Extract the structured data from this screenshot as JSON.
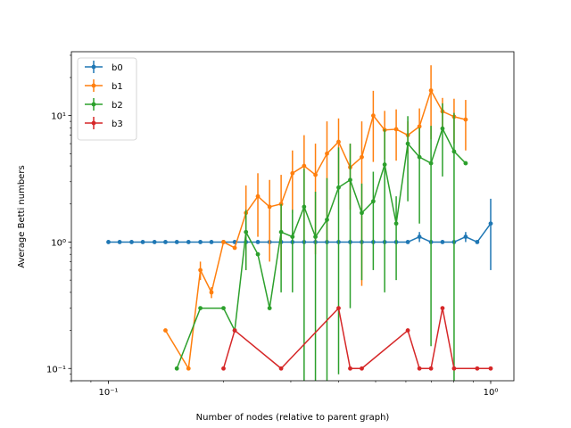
{
  "chart_data": {
    "type": "line",
    "title": "",
    "xlabel": "Number of nodes (relative to parent graph)",
    "ylabel": "Average Betti numbers",
    "xscale": "log",
    "yscale": "log",
    "xlim": [
      0.08,
      1.15
    ],
    "ylim": [
      0.08,
      32
    ],
    "x_major_ticks": [
      0.1,
      1
    ],
    "x_tick_labels": [
      "10⁻¹",
      "10⁰"
    ],
    "y_major_ticks": [
      0.1,
      1,
      10
    ],
    "y_tick_labels": [
      "10⁻¹",
      "10⁰",
      "10¹"
    ],
    "grid": false,
    "legend_position": "upper-left",
    "series": [
      {
        "name": "b0",
        "color": "#1f77b4",
        "points": [
          {
            "x": 0.1,
            "y": 1.0
          },
          {
            "x": 0.107,
            "y": 1.0
          },
          {
            "x": 0.115,
            "y": 1.0
          },
          {
            "x": 0.123,
            "y": 1.0
          },
          {
            "x": 0.132,
            "y": 1.0
          },
          {
            "x": 0.141,
            "y": 1.0
          },
          {
            "x": 0.151,
            "y": 1.0
          },
          {
            "x": 0.162,
            "y": 1.0
          },
          {
            "x": 0.174,
            "y": 1.0
          },
          {
            "x": 0.186,
            "y": 1.0
          },
          {
            "x": 0.2,
            "y": 1.0
          },
          {
            "x": 0.214,
            "y": 1.0
          },
          {
            "x": 0.229,
            "y": 1.0
          },
          {
            "x": 0.246,
            "y": 1.0
          },
          {
            "x": 0.264,
            "y": 1.0
          },
          {
            "x": 0.283,
            "y": 1.0
          },
          {
            "x": 0.303,
            "y": 1.0
          },
          {
            "x": 0.325,
            "y": 1.0
          },
          {
            "x": 0.348,
            "y": 1.0
          },
          {
            "x": 0.373,
            "y": 1.0
          },
          {
            "x": 0.4,
            "y": 1.0
          },
          {
            "x": 0.429,
            "y": 1.0
          },
          {
            "x": 0.46,
            "y": 1.0
          },
          {
            "x": 0.493,
            "y": 1.0
          },
          {
            "x": 0.528,
            "y": 1.0
          },
          {
            "x": 0.566,
            "y": 1.0
          },
          {
            "x": 0.607,
            "y": 1.0
          },
          {
            "x": 0.651,
            "y": 1.1,
            "err_lo": 1.0,
            "err_hi": 1.2
          },
          {
            "x": 0.698,
            "y": 1.0
          },
          {
            "x": 0.748,
            "y": 1.0
          },
          {
            "x": 0.802,
            "y": 1.0
          },
          {
            "x": 0.86,
            "y": 1.1,
            "err_lo": 1.0,
            "err_hi": 1.2
          },
          {
            "x": 0.922,
            "y": 1.0
          },
          {
            "x": 1.0,
            "y": 1.4,
            "err_lo": 0.6,
            "err_hi": 2.2
          }
        ]
      },
      {
        "name": "b1",
        "color": "#ff7f0e",
        "points": [
          {
            "x": 0.141,
            "y": 0.2
          },
          {
            "x": 0.162,
            "y": 0.1
          },
          {
            "x": 0.174,
            "y": 0.6,
            "err_lo": 0.5,
            "err_hi": 0.7
          },
          {
            "x": 0.186,
            "y": 0.4,
            "err_lo": 0.36,
            "err_hi": 0.44
          },
          {
            "x": 0.2,
            "y": 1.0
          },
          {
            "x": 0.214,
            "y": 0.9
          },
          {
            "x": 0.229,
            "y": 1.7,
            "err_lo": 0.6,
            "err_hi": 2.8
          },
          {
            "x": 0.246,
            "y": 2.3,
            "err_lo": 1.1,
            "err_hi": 3.5
          },
          {
            "x": 0.264,
            "y": 1.9,
            "err_lo": 0.7,
            "err_hi": 3.1
          },
          {
            "x": 0.283,
            "y": 2.0,
            "err_lo": 0.6,
            "err_hi": 3.4
          },
          {
            "x": 0.303,
            "y": 3.5,
            "err_lo": 1.7,
            "err_hi": 5.3
          },
          {
            "x": 0.325,
            "y": 4.0,
            "err_lo": 1.0,
            "err_hi": 7.0
          },
          {
            "x": 0.348,
            "y": 3.4,
            "err_lo": 0.8,
            "err_hi": 6.0
          },
          {
            "x": 0.373,
            "y": 5.0,
            "err_lo": 1.0,
            "err_hi": 9.0
          },
          {
            "x": 0.4,
            "y": 6.2,
            "err_lo": 2.9,
            "err_hi": 9.5
          },
          {
            "x": 0.429,
            "y": 3.9,
            "err_lo": 1.8,
            "err_hi": 6.0
          },
          {
            "x": 0.46,
            "y": 4.7,
            "err_lo": 0.45,
            "err_hi": 9.0
          },
          {
            "x": 0.493,
            "y": 10.0,
            "err_lo": 4.3,
            "err_hi": 15.7
          },
          {
            "x": 0.528,
            "y": 7.7,
            "err_lo": 4.5,
            "err_hi": 10.9
          },
          {
            "x": 0.566,
            "y": 7.8,
            "err_lo": 4.4,
            "err_hi": 11.2
          },
          {
            "x": 0.607,
            "y": 7.0,
            "err_lo": 5.0,
            "err_hi": 9.0
          },
          {
            "x": 0.651,
            "y": 8.2,
            "err_lo": 5.0,
            "err_hi": 11.4
          },
          {
            "x": 0.698,
            "y": 15.8,
            "err_lo": 6.5,
            "err_hi": 25.0
          },
          {
            "x": 0.748,
            "y": 10.8,
            "err_lo": 7.8,
            "err_hi": 13.8
          },
          {
            "x": 0.802,
            "y": 9.8,
            "err_lo": 6.0,
            "err_hi": 13.6
          },
          {
            "x": 0.86,
            "y": 9.3,
            "err_lo": 5.3,
            "err_hi": 13.3
          }
        ]
      },
      {
        "name": "b2",
        "color": "#2ca02c",
        "points": [
          {
            "x": 0.151,
            "y": 0.1
          },
          {
            "x": 0.174,
            "y": 0.3
          },
          {
            "x": 0.2,
            "y": 0.3
          },
          {
            "x": 0.214,
            "y": 0.2
          },
          {
            "x": 0.229,
            "y": 1.2,
            "err_lo": 0.6,
            "err_hi": 1.8
          },
          {
            "x": 0.246,
            "y": 0.8
          },
          {
            "x": 0.264,
            "y": 0.3
          },
          {
            "x": 0.283,
            "y": 1.2,
            "err_lo": 0.4,
            "err_hi": 2.0
          },
          {
            "x": 0.303,
            "y": 1.1,
            "err_lo": 0.4,
            "err_hi": 1.8
          },
          {
            "x": 0.325,
            "y": 1.9,
            "err_lo": 0.05,
            "err_hi": 3.8
          },
          {
            "x": 0.348,
            "y": 1.1,
            "err_lo": 0.05,
            "err_hi": 2.5
          },
          {
            "x": 0.373,
            "y": 1.5,
            "err_lo": 0.05,
            "err_hi": 3.2
          },
          {
            "x": 0.4,
            "y": 2.7,
            "err_lo": 0.09,
            "err_hi": 5.6
          },
          {
            "x": 0.429,
            "y": 3.1,
            "err_lo": 0.3,
            "err_hi": 6.0
          },
          {
            "x": 0.46,
            "y": 1.7,
            "err_lo": 0.5,
            "err_hi": 2.9
          },
          {
            "x": 0.493,
            "y": 2.1,
            "err_lo": 0.6,
            "err_hi": 3.6
          },
          {
            "x": 0.528,
            "y": 4.1,
            "err_lo": 0.4,
            "err_hi": 7.8
          },
          {
            "x": 0.566,
            "y": 1.4,
            "err_lo": 0.5,
            "err_hi": 2.3
          },
          {
            "x": 0.607,
            "y": 6.0,
            "err_lo": 2.1,
            "err_hi": 9.9
          },
          {
            "x": 0.651,
            "y": 4.7,
            "err_lo": 1.4,
            "err_hi": 8.0
          },
          {
            "x": 0.698,
            "y": 4.2,
            "err_lo": 0.15,
            "err_hi": 8.3
          },
          {
            "x": 0.748,
            "y": 7.9,
            "err_lo": 3.3,
            "err_hi": 12.5
          },
          {
            "x": 0.802,
            "y": 5.2,
            "err_lo": 0.05,
            "err_hi": 10.5
          },
          {
            "x": 0.86,
            "y": 4.2
          }
        ]
      },
      {
        "name": "b3",
        "color": "#d62728",
        "points": [
          {
            "x": 0.2,
            "y": 0.1
          },
          {
            "x": 0.214,
            "y": 0.2
          },
          {
            "x": 0.283,
            "y": 0.1
          },
          {
            "x": 0.4,
            "y": 0.3
          },
          {
            "x": 0.429,
            "y": 0.1
          },
          {
            "x": 0.46,
            "y": 0.1
          },
          {
            "x": 0.607,
            "y": 0.2
          },
          {
            "x": 0.651,
            "y": 0.1
          },
          {
            "x": 0.698,
            "y": 0.1
          },
          {
            "x": 0.748,
            "y": 0.3
          },
          {
            "x": 0.802,
            "y": 0.1
          },
          {
            "x": 0.922,
            "y": 0.1
          },
          {
            "x": 1.0,
            "y": 0.1
          }
        ]
      }
    ]
  }
}
